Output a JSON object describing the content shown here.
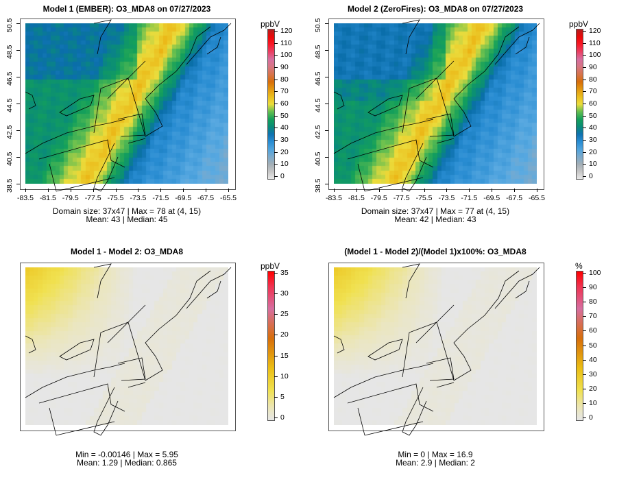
{
  "panels": [
    {
      "title": "Model 1 (EMBER): O3_MDA8 on 07/27/2023",
      "unit": "ppbV",
      "colorbar_ticks": [
        "0",
        "10",
        "20",
        "30",
        "40",
        "50",
        "60",
        "70",
        "80",
        "90",
        "100",
        "110",
        "120"
      ],
      "show_axes": true,
      "field": "ember",
      "range": [
        0,
        120
      ],
      "stats": [
        "Domain size: 37x47 | Max = 78 at (4, 15)",
        "Mean: 43 |  Median: 45"
      ]
    },
    {
      "title": "Model 2 (ZeroFires): O3_MDA8 on 07/27/2023",
      "unit": "ppbV",
      "colorbar_ticks": [
        "0",
        "10",
        "20",
        "30",
        "40",
        "50",
        "60",
        "70",
        "80",
        "90",
        "100",
        "110",
        "120"
      ],
      "show_axes": true,
      "field": "zero",
      "range": [
        0,
        120
      ],
      "stats": [
        "Domain size: 37x47 | Max = 77 at (4, 15)",
        "Mean: 42 |  Median: 43"
      ]
    },
    {
      "title": "Model 1 - Model 2: O3_MDA8",
      "unit": "ppbV",
      "colorbar_ticks": [
        "0",
        "5",
        "10",
        "15",
        "20",
        "25",
        "30",
        "35"
      ],
      "show_axes": false,
      "field": "diff",
      "range": [
        0,
        35
      ],
      "stats": [
        "Min = -0.00146 | Max = 5.95",
        "Mean: 1.29 |  Median: 0.865"
      ]
    },
    {
      "title": "(Model 1 - Model 2)/(Model 1)x100%: O3_MDA8",
      "unit": "%",
      "colorbar_ticks": [
        "0",
        "10",
        "20",
        "30",
        "40",
        "50",
        "60",
        "70",
        "80",
        "90",
        "100"
      ],
      "show_axes": false,
      "field": "pct",
      "range": [
        0,
        100
      ],
      "stats": [
        "Min = 0 | Max = 16.9",
        "Mean: 2.9 |  Median: 2"
      ]
    }
  ],
  "x_ticks": [
    "-83.5",
    "-81.5",
    "-79.5",
    "-77.5",
    "-75.5",
    "-73.5",
    "-71.5",
    "-69.5",
    "-67.5",
    "-65.5"
  ],
  "y_ticks": [
    "38.5",
    "40.5",
    "42.5",
    "44.5",
    "46.5",
    "48.5",
    "50.5"
  ],
  "grid": {
    "rows": 37,
    "cols": 47
  }
}
